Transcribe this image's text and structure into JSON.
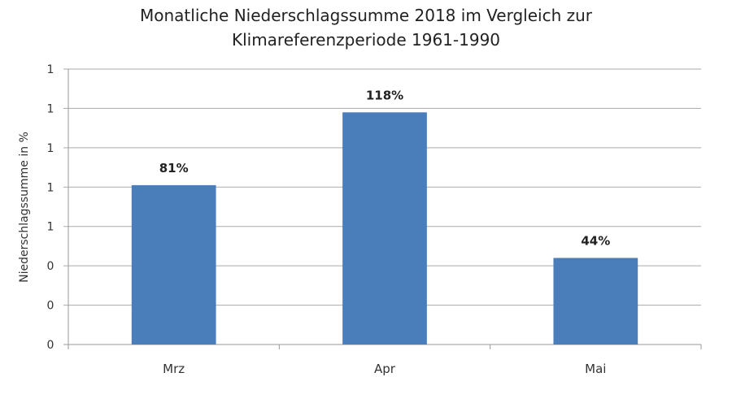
{
  "chart_data": {
    "type": "bar",
    "title_lines": [
      "Monatliche Niederschlagssumme 2018 im Vergleich zur",
      "Klimareferenzperiode 1961-1990"
    ],
    "xlabel": "",
    "ylabel": "Niederschlagssumme in %",
    "categories": [
      "Mrz",
      "Apr",
      "Mai"
    ],
    "values": [
      0.81,
      1.18,
      0.44
    ],
    "data_labels": [
      "81%",
      "118%",
      "44%"
    ],
    "ylim": [
      0,
      1.4
    ],
    "ytick_values": [
      0,
      0.2,
      0.4,
      0.6,
      0.8,
      1.0,
      1.2,
      1.4
    ],
    "ytick_labels": [
      "0",
      "0",
      "0",
      "1",
      "1",
      "1",
      "1",
      "1"
    ],
    "grid": true,
    "bar_color": "#4a7ebb",
    "legend": "none"
  }
}
